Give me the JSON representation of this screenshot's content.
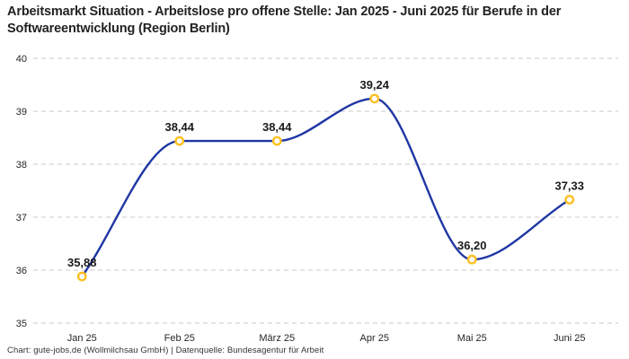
{
  "header": {
    "title": "Arbeitsmarkt Situation - Arbeitslose pro offene Stelle: Jan 2025 - Juni 2025 für Berufe in der Softwareentwicklung (Region Berlin)"
  },
  "footer": {
    "text": "Chart: gute-jobs.de (Wollmilchsau GmbH) | Datenquelle: Bundesagentur für Arbeit"
  },
  "chart_data": {
    "type": "line",
    "title": "Arbeitsmarkt Situation - Arbeitslose pro offene Stelle: Jan 2025 - Juni 2025 für Berufe in der Softwareentwicklung (Region Berlin)",
    "categories": [
      "Jan 25",
      "Feb 25",
      "März 25",
      "Apr 25",
      "Mai 25",
      "Juni 25"
    ],
    "values": [
      35.88,
      38.44,
      38.44,
      39.24,
      36.2,
      37.33
    ],
    "value_labels": [
      "35,88",
      "38,44",
      "38,44",
      "39,24",
      "36,20",
      "37,33"
    ],
    "xlabel": "",
    "ylabel": "",
    "ylim": [
      35,
      40
    ],
    "y_ticks": [
      40,
      39,
      38,
      37,
      36,
      35
    ],
    "grid": "horizontal-dashed",
    "legend": "none",
    "curve": "smooth-monotone",
    "colors": {
      "line": "#1f36a3",
      "marker_ring": "#fdc021",
      "marker_fill": "#ffffff",
      "grid": "#c9c9c9",
      "axis_text": "#262626",
      "value_label_text": "#1a1a1a"
    }
  }
}
